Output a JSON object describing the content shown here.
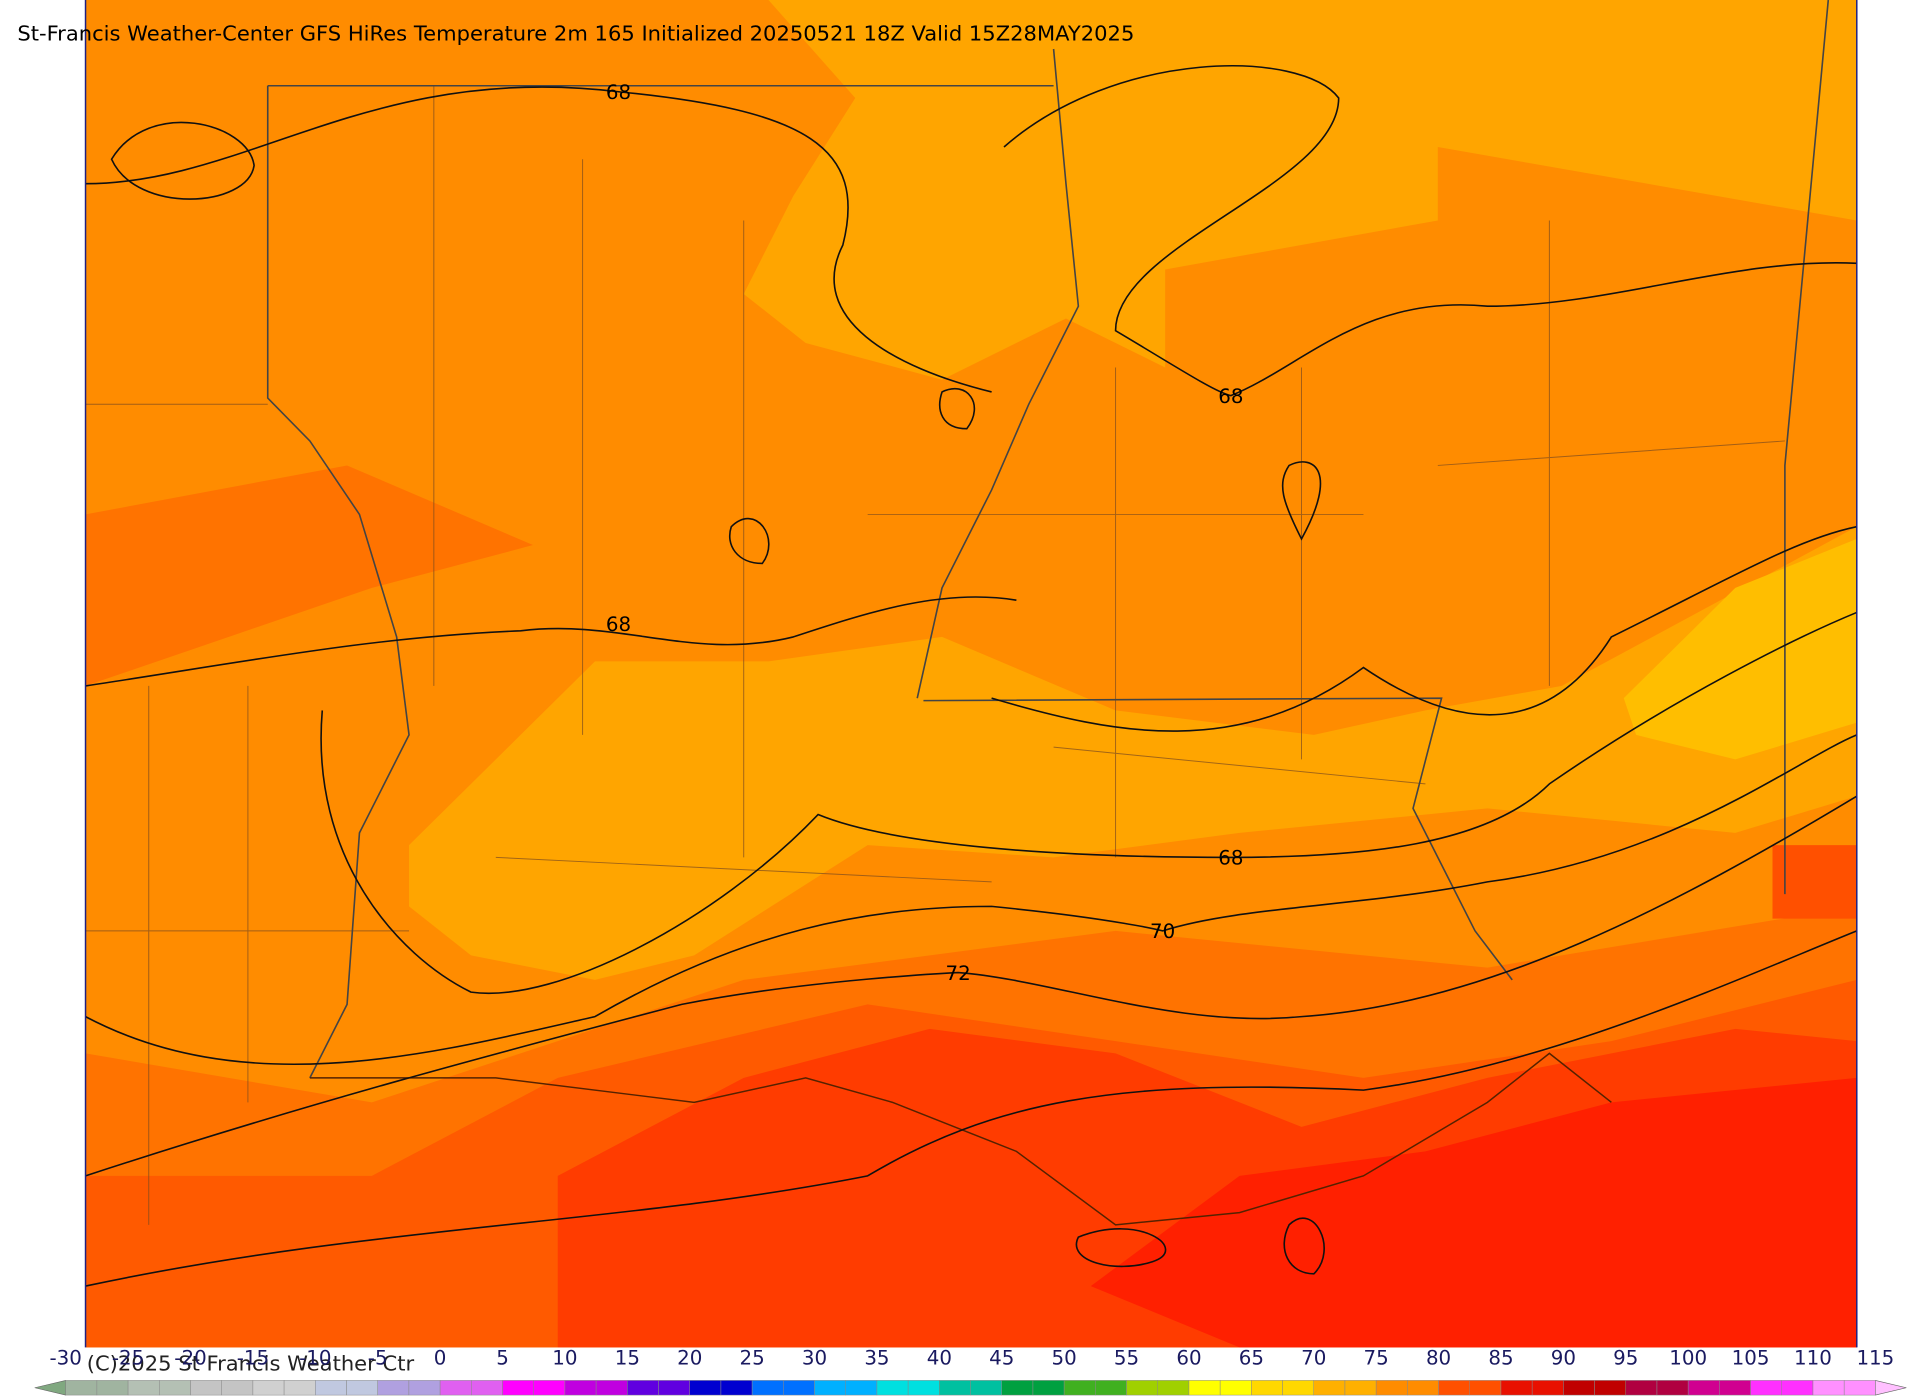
{
  "title": "St-Francis Weather-Center GFS HiRes Temperature 2m  165 Initialized 20250521 18Z Valid 15Z28MAY2025",
  "contour_labels": [
    68,
    68,
    68,
    68,
    70,
    72
  ],
  "copyright": "(C)2025 St Francis Weather Ctr",
  "colorbar": {
    "ticks": [
      -30,
      -25,
      -20,
      -15,
      -10,
      -5,
      0,
      5,
      10,
      15,
      20,
      25,
      30,
      35,
      40,
      45,
      50,
      55,
      60,
      65,
      70,
      75,
      80,
      85,
      90,
      95,
      100,
      105,
      110,
      115
    ],
    "colors": [
      "#a0b4a0",
      "#b4c0b4",
      "#c4c4c4",
      "#d0d0d0",
      "#c0c8e0",
      "#b0a0e0",
      "#e060f0",
      "#ff00ff",
      "#c000e0",
      "#6000e0",
      "#0000d0",
      "#0070ff",
      "#00b0ff",
      "#00e0e0",
      "#00c0a0",
      "#00a040",
      "#40b020",
      "#a0d000",
      "#ffff00",
      "#ffd800",
      "#ffb000",
      "#ff8c00",
      "#ff5000",
      "#e81000",
      "#c00000",
      "#b00040",
      "#d00090",
      "#ff30ff",
      "#ff90ff"
    ]
  }
}
